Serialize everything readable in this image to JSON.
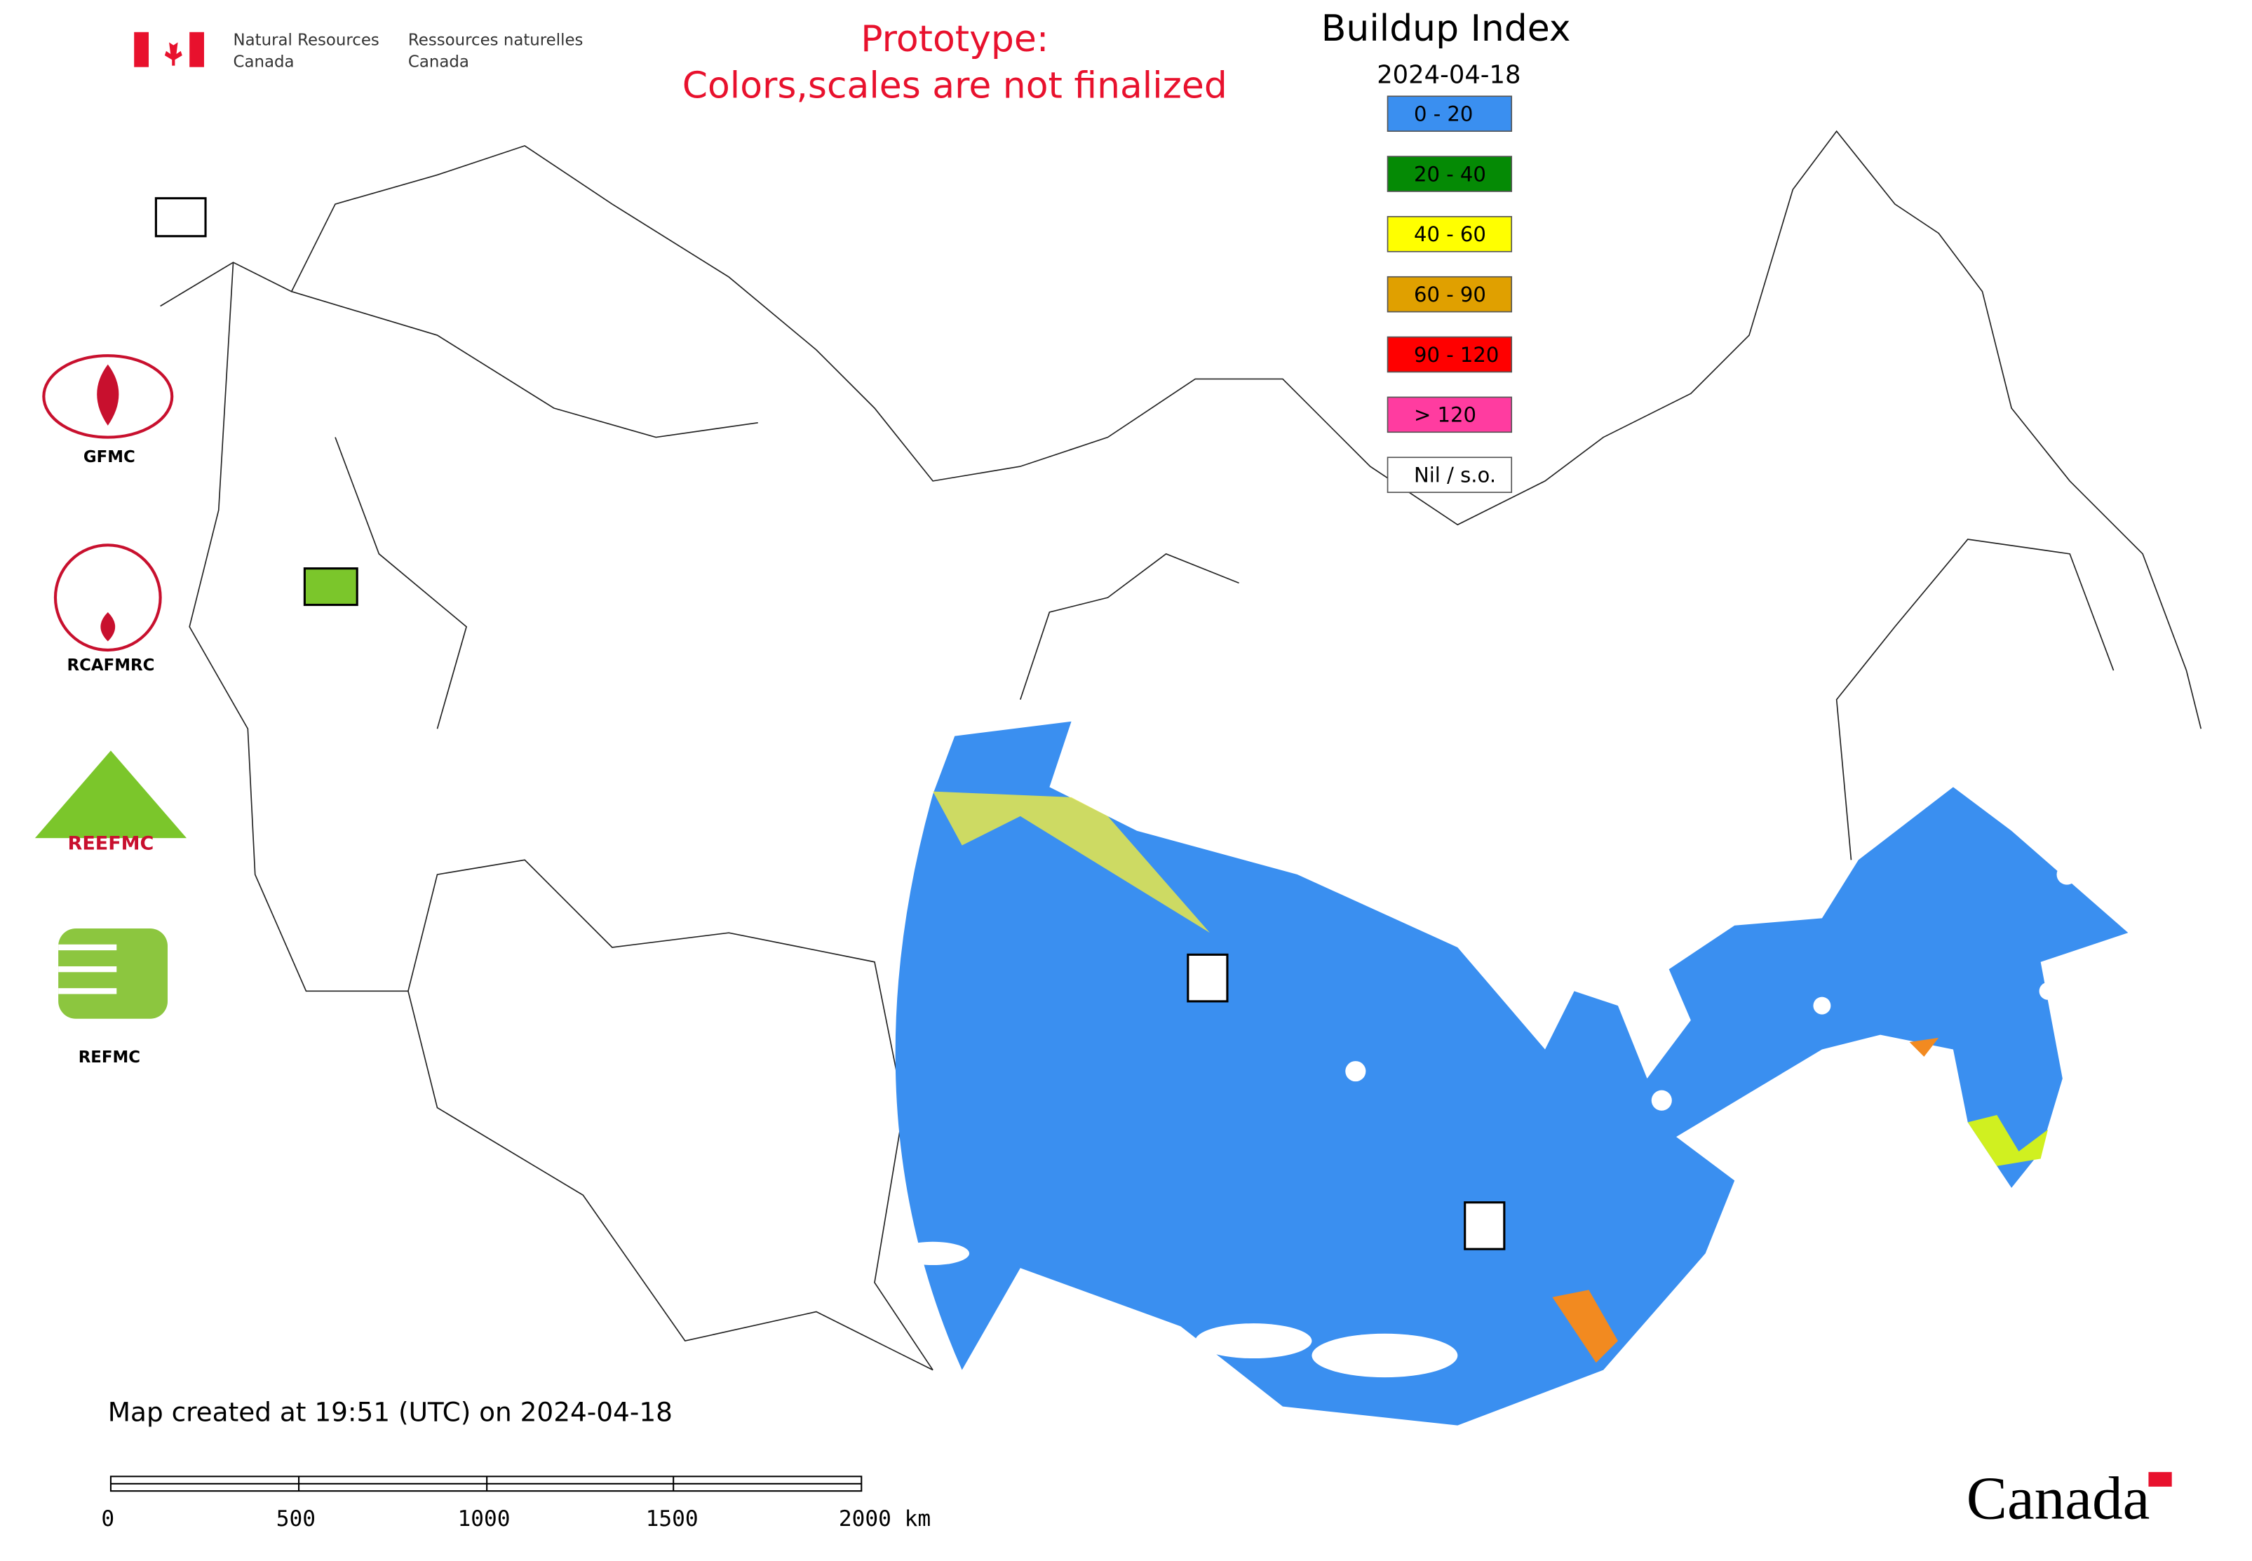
{
  "header": {
    "agency_en": [
      "Natural Resources",
      "Canada"
    ],
    "agency_fr": [
      "Ressources naturelles",
      "Canada"
    ],
    "notice": [
      "Prototype:",
      "Colors,scales are not finalized"
    ]
  },
  "legend": {
    "title": "Buildup Index",
    "date": "2024-04-18",
    "items": [
      {
        "label": "0 - 20",
        "color": "#3a8ff0"
      },
      {
        "label": "20 - 40",
        "color": "#058a05"
      },
      {
        "label": "40 - 60",
        "color": "#ffff00"
      },
      {
        "label": "60 - 90",
        "color": "#e0a000"
      },
      {
        "label": "90 - 120",
        "color": "#ff0000"
      },
      {
        "label": "> 120",
        "color": "#ff3ca0"
      },
      {
        "label": "Nil / s.o.",
        "color": "#ffffff"
      }
    ]
  },
  "logos": [
    "GFMC",
    "RCAFMRC",
    "REEFMC",
    "REFMC"
  ],
  "footer": {
    "created": "Map created at 19:51 (UTC) on 2024-04-18",
    "scale_labels": [
      "0",
      "500",
      "1000",
      "1500",
      "2000 km"
    ],
    "wordmark": "Canada"
  }
}
